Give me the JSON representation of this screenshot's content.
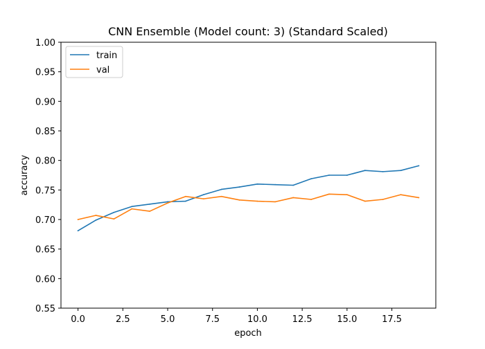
{
  "chart_data": {
    "type": "line",
    "title": "CNN Ensemble (Model count: 3) (Standard Scaled)",
    "xlabel": "epoch",
    "ylabel": "accuracy",
    "xlim": [
      -0.95,
      19.95
    ],
    "ylim": [
      0.55,
      1.0
    ],
    "xticks": [
      0.0,
      2.5,
      5.0,
      7.5,
      10.0,
      12.5,
      15.0,
      17.5
    ],
    "xtick_labels": [
      "0.0",
      "2.5",
      "5.0",
      "7.5",
      "10.0",
      "12.5",
      "15.0",
      "17.5"
    ],
    "yticks": [
      0.55,
      0.6,
      0.65,
      0.7,
      0.75,
      0.8,
      0.85,
      0.9,
      0.95,
      1.0
    ],
    "ytick_labels": [
      "0.55",
      "0.60",
      "0.65",
      "0.70",
      "0.75",
      "0.80",
      "0.85",
      "0.90",
      "0.95",
      "1.00"
    ],
    "grid": false,
    "legend_position": "top-left",
    "x": [
      0,
      1,
      2,
      3,
      4,
      5,
      6,
      7,
      8,
      9,
      10,
      11,
      12,
      13,
      14,
      15,
      16,
      17,
      18,
      19
    ],
    "series": [
      {
        "name": "train",
        "color": "#1f77b4",
        "values": [
          0.681,
          0.699,
          0.712,
          0.722,
          0.726,
          0.73,
          0.731,
          0.742,
          0.751,
          0.755,
          0.76,
          0.759,
          0.758,
          0.769,
          0.775,
          0.775,
          0.783,
          0.781,
          0.783,
          0.791
        ]
      },
      {
        "name": "val",
        "color": "#ff7f0e",
        "values": [
          0.7,
          0.707,
          0.701,
          0.718,
          0.714,
          0.728,
          0.739,
          0.735,
          0.739,
          0.733,
          0.731,
          0.73,
          0.737,
          0.734,
          0.743,
          0.742,
          0.731,
          0.734,
          0.742,
          0.737
        ]
      }
    ]
  }
}
